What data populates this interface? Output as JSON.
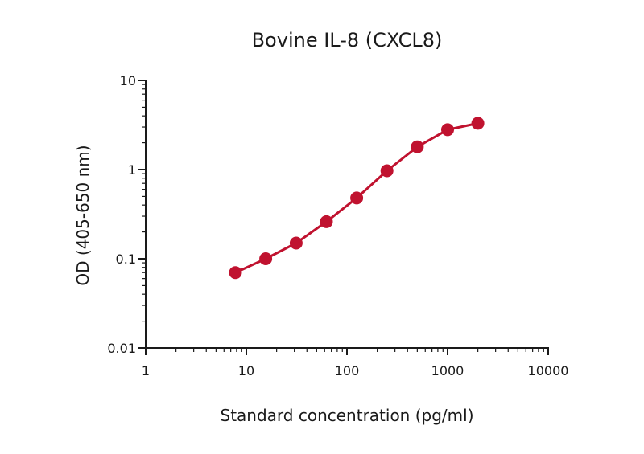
{
  "chart_data": {
    "type": "line",
    "title": "Bovine IL-8 (CXCL8)",
    "xlabel": "Standard concentration (pg/ml)",
    "ylabel": "OD (405-650 nm)",
    "x_scale": "log",
    "y_scale": "log",
    "xlim": [
      1,
      10000
    ],
    "ylim": [
      0.01,
      10
    ],
    "x_ticks": [
      "1",
      "10",
      "100",
      "1000",
      "10000"
    ],
    "y_ticks": [
      "0.01",
      "0.1",
      "1",
      "10"
    ],
    "grid": false,
    "series": [
      {
        "color": "#c0122f",
        "x": [
          7.8,
          15.6,
          31.25,
          62.5,
          125,
          250,
          500,
          1000,
          2000
        ],
        "y": [
          0.07,
          0.1,
          0.15,
          0.26,
          0.48,
          0.97,
          1.8,
          2.8,
          3.3
        ]
      }
    ]
  }
}
